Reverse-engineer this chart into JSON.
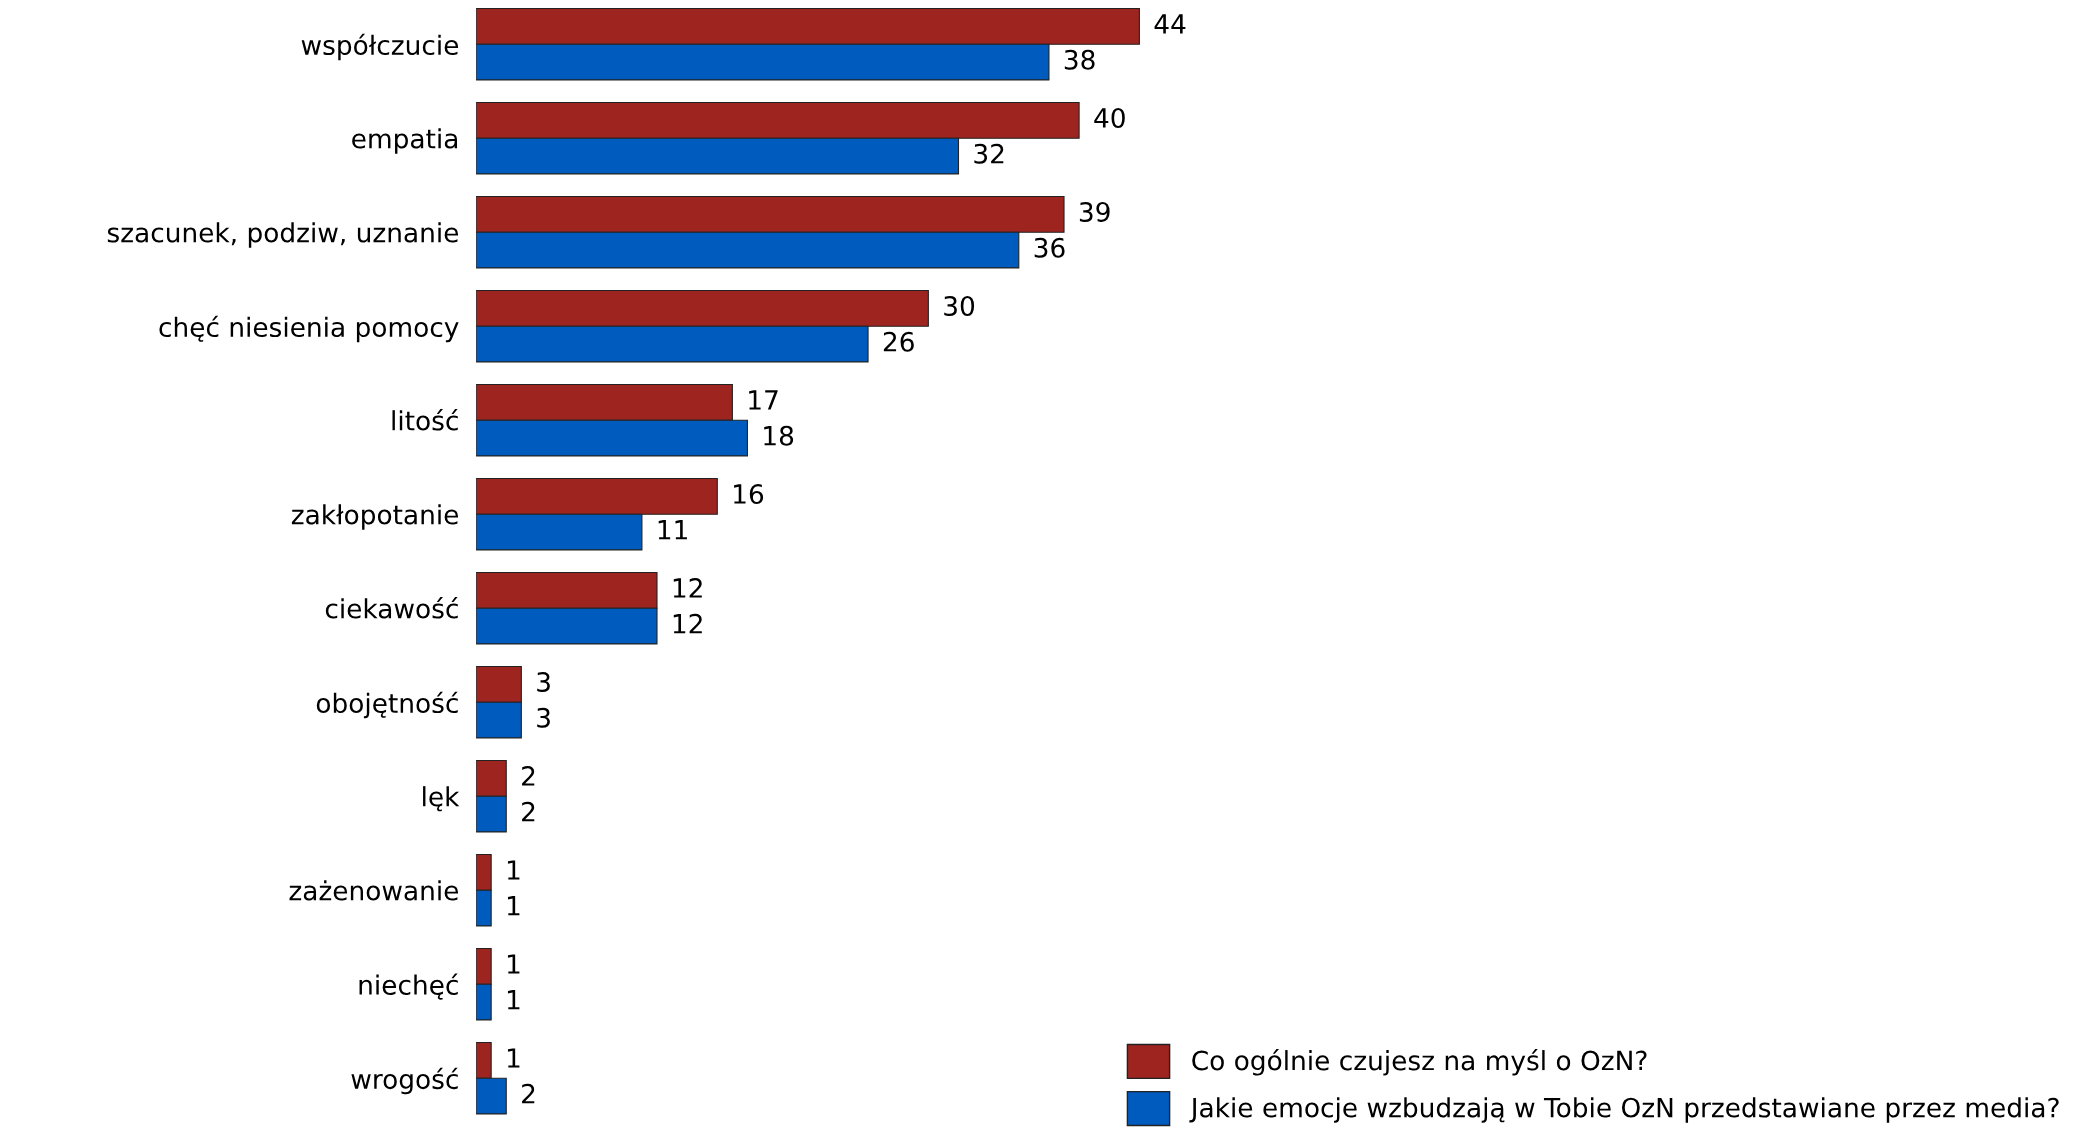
{
  "chart_data": {
    "type": "bar",
    "orientation": "horizontal",
    "categories": [
      "współczucie",
      "empatia",
      "szacunek, podziw, uznanie",
      "chęć niesienia pomocy",
      "litość",
      "zakłopotanie",
      "ciekawość",
      "obojętność",
      "lęk",
      "zażenowanie",
      "niechęć",
      "wrogość"
    ],
    "series": [
      {
        "name": "Co ogólnie czujesz na myśl o OzN?",
        "color": "#9e2420",
        "values": [
          44,
          40,
          39,
          30,
          17,
          16,
          12,
          3,
          2,
          1,
          1,
          1
        ]
      },
      {
        "name": "Jakie emocje wzbudzają w Tobie OzN przedstawiane przez media?",
        "color": "#005bbf",
        "values": [
          38,
          32,
          36,
          26,
          18,
          11,
          12,
          3,
          2,
          1,
          1,
          2
        ]
      }
    ],
    "tick_labels": "y",
    "data_labels": true,
    "grid": false,
    "legend": "bottom right"
  }
}
